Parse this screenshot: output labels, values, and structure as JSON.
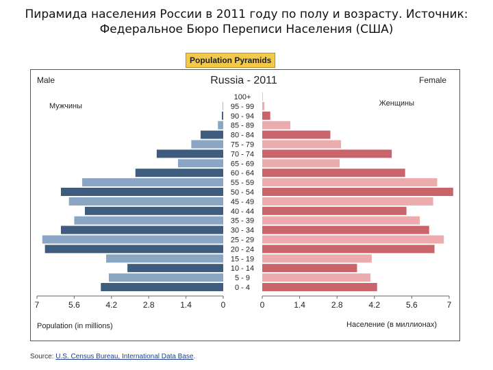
{
  "slide": {
    "title_line1": "Пирамида населения России в 2011 году по полу и возрасту. Источник:",
    "title_line2": "Федеральное Бюро Переписи Населения (США)"
  },
  "badge": {
    "label": "Population Pyramids"
  },
  "source": {
    "prefix": "Source: ",
    "link_text": "U.S. Census Bureau, International Data Base",
    "suffix": "."
  },
  "colors": {
    "male_dark": "#3e5c7d",
    "male_light": "#8aa6c4",
    "female_dark": "#c8646a",
    "female_light": "#ecacae"
  },
  "chart_data": {
    "type": "bar",
    "orientation": "horizontal-pyramid",
    "title": "Russia - 2011",
    "left_label": "Male",
    "right_label": "Female",
    "left_sublabel": "Мужчины",
    "right_sublabel": "Женщины",
    "xlabel_left": "Population (in millions)",
    "xlabel_right": "Население (в миллионах)",
    "xlim": [
      0,
      7
    ],
    "ticks_left": [
      "7",
      "5.6",
      "4.2",
      "2.8",
      "1.4",
      "0"
    ],
    "ticks_right": [
      "0",
      "1.4",
      "2.8",
      "4.2",
      "5.6",
      "7"
    ],
    "categories": [
      "100+",
      "95 - 99",
      "90 - 94",
      "85 - 89",
      "80 - 84",
      "75 - 79",
      "70 - 74",
      "65 - 69",
      "60 - 64",
      "55 - 59",
      "50 - 54",
      "45 - 49",
      "40 - 44",
      "35 - 39",
      "30 - 34",
      "25 - 29",
      "20 - 24",
      "15 - 19",
      "10 - 14",
      "5 - 9",
      "0 - 4"
    ],
    "series": [
      {
        "name": "Male",
        "values": [
          0.0,
          0.02,
          0.05,
          0.2,
          0.85,
          1.2,
          2.5,
          1.7,
          3.3,
          5.3,
          6.1,
          5.8,
          5.2,
          5.6,
          6.1,
          6.8,
          6.7,
          4.4,
          3.6,
          4.3,
          4.6
        ]
      },
      {
        "name": "Female",
        "values": [
          0.01,
          0.08,
          0.3,
          1.05,
          2.55,
          2.95,
          4.85,
          2.9,
          5.35,
          6.55,
          7.15,
          6.4,
          5.4,
          5.9,
          6.25,
          6.8,
          6.45,
          4.1,
          3.55,
          4.05,
          4.3
        ]
      }
    ],
    "grid": false,
    "legend": "none"
  }
}
